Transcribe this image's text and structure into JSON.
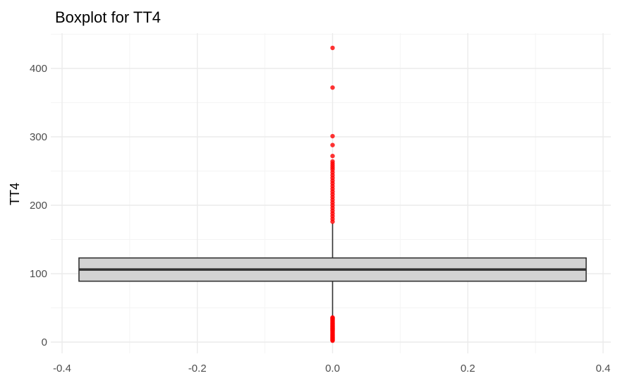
{
  "chart_data": {
    "type": "boxplot",
    "title": "Boxplot for TT4",
    "xlabel": "",
    "ylabel": "TT4",
    "xlim": [
      -0.4,
      0.4
    ],
    "ylim": [
      0,
      430
    ],
    "x_ticks": [
      -0.4,
      -0.2,
      0.0,
      0.2,
      0.4
    ],
    "x_tick_labels": [
      "-0.4",
      "-0.2",
      "0.0",
      "0.2",
      "0.4"
    ],
    "y_ticks": [
      0,
      100,
      200,
      300,
      400
    ],
    "y_tick_labels": [
      "0",
      "100",
      "200",
      "300",
      "400"
    ],
    "grid": true,
    "box": {
      "x": 0.0,
      "width": 0.75,
      "q1": 89,
      "median": 106,
      "q3": 123,
      "whisker_low": 38,
      "whisker_high": 174
    },
    "outliers": [
      2,
      3,
      4,
      5,
      6,
      7,
      8,
      9,
      10,
      11,
      12,
      13,
      14,
      15,
      16,
      17,
      18,
      19,
      20,
      21,
      22,
      23,
      24,
      25,
      26,
      27,
      28,
      29,
      30,
      31,
      32,
      33,
      34,
      35,
      36,
      176,
      180,
      184,
      188,
      192,
      196,
      200,
      204,
      208,
      212,
      216,
      220,
      224,
      228,
      232,
      236,
      240,
      244,
      248,
      252,
      255,
      258,
      261,
      264,
      272,
      288,
      301,
      372,
      430
    ],
    "colors": {
      "box_fill": "#d3d3d3",
      "box_line": "#333333",
      "outlier": "#ff0000",
      "grid_major": "#ebebeb",
      "grid_minor": "#f4f4f4"
    }
  }
}
